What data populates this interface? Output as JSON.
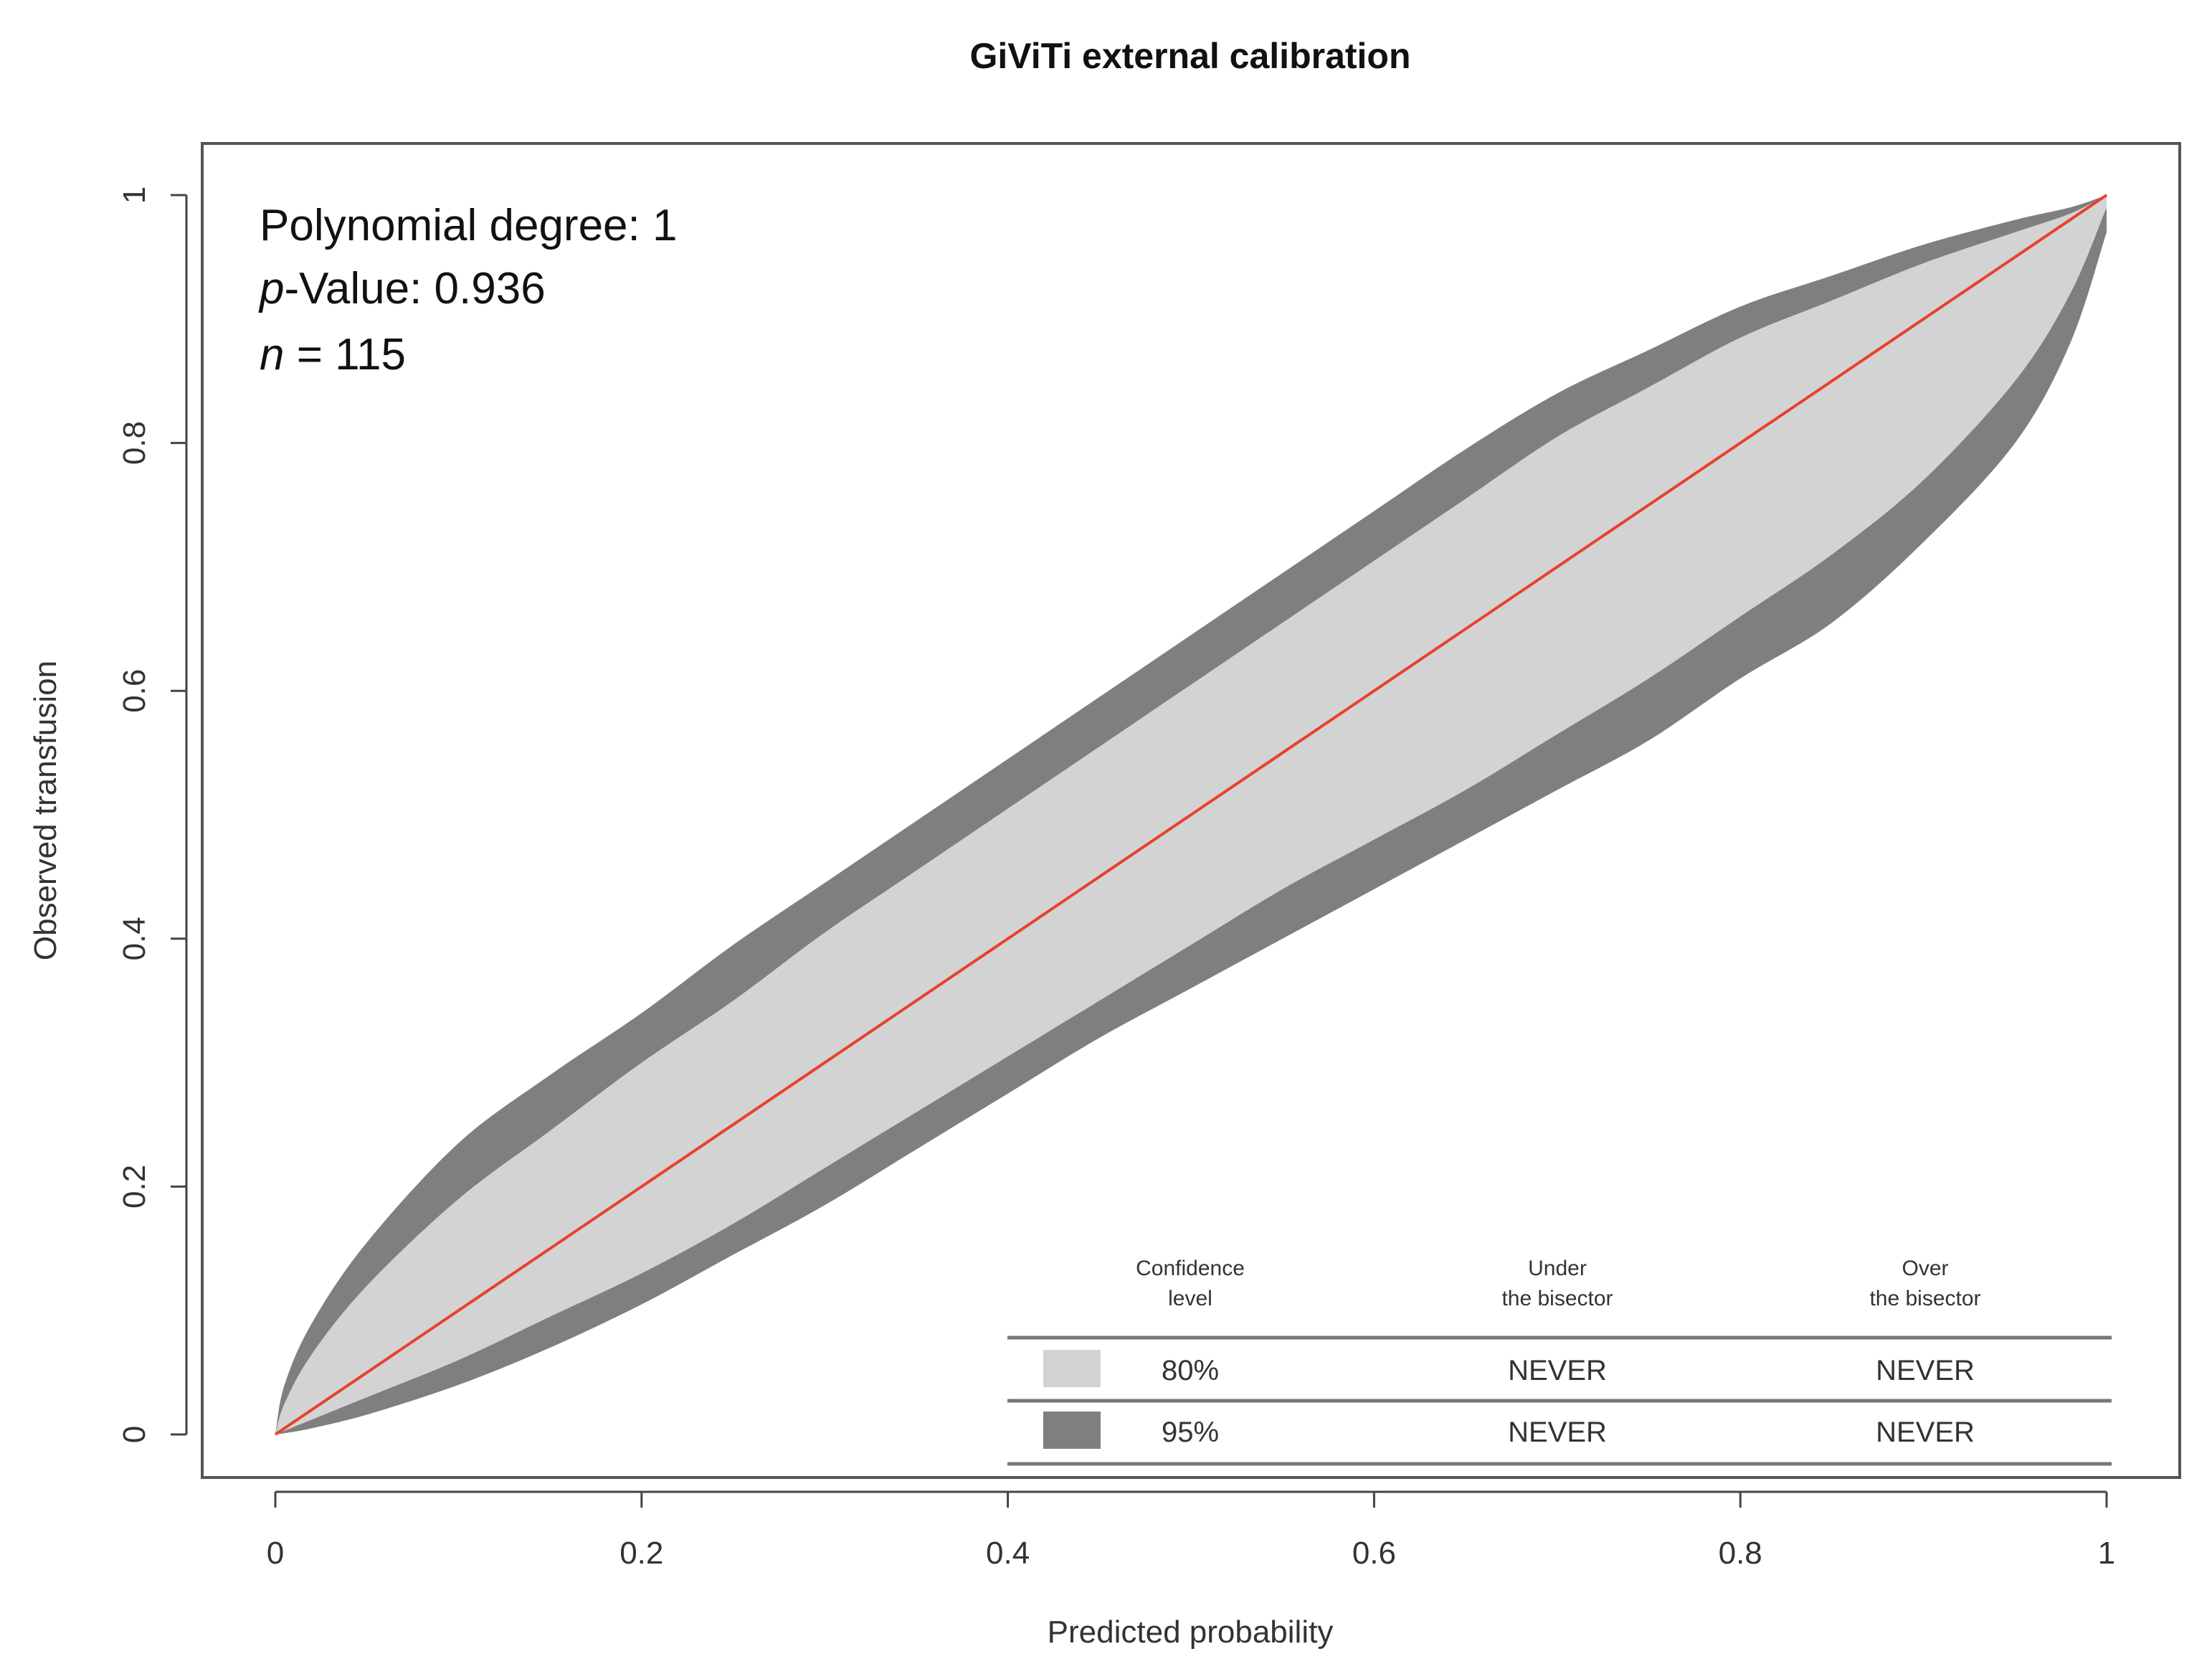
{
  "chart_data": {
    "type": "area",
    "title": "GiViTi external calibration",
    "xlabel": "Predicted probability",
    "ylabel": "Observed transfusion",
    "xlim": [
      0,
      1
    ],
    "ylim": [
      0,
      1
    ],
    "x_ticks": [
      0,
      0.2,
      0.4,
      0.6,
      0.8,
      1
    ],
    "x_tick_labels": [
      "0",
      "0.2",
      "0.4",
      "0.6",
      "0.8",
      "1"
    ],
    "y_ticks": [
      0,
      0.2,
      0.4,
      0.6,
      0.8,
      1
    ],
    "y_tick_labels": [
      "0",
      "0.2",
      "0.4",
      "0.6",
      "0.8",
      "1"
    ],
    "annotations": {
      "degree": "Polynomial degree: 1",
      "pvalue_prefix": "p",
      "pvalue_rest": "-Value: 0.936",
      "n_prefix": "n",
      "n_rest": " = 115"
    },
    "bisector": {
      "x": [
        0,
        1
      ],
      "y": [
        0,
        1
      ],
      "color": "#e8412c"
    },
    "band_x": [
      0,
      0.005,
      0.02,
      0.05,
      0.1,
      0.15,
      0.2,
      0.25,
      0.3,
      0.35,
      0.4,
      0.45,
      0.5,
      0.55,
      0.6,
      0.65,
      0.7,
      0.75,
      0.8,
      0.85,
      0.9,
      0.95,
      0.98,
      1
    ],
    "series": [
      {
        "name": "95%",
        "color": "#7f7f7f",
        "upper": [
          0,
          0.04,
          0.09,
          0.155,
          0.235,
          0.29,
          0.34,
          0.395,
          0.445,
          0.495,
          0.545,
          0.595,
          0.645,
          0.695,
          0.745,
          0.795,
          0.84,
          0.875,
          0.91,
          0.935,
          0.96,
          0.98,
          0.99,
          1
        ],
        "lower": [
          0,
          0.001,
          0.005,
          0.016,
          0.04,
          0.07,
          0.105,
          0.145,
          0.185,
          0.23,
          0.275,
          0.32,
          0.36,
          0.4,
          0.44,
          0.48,
          0.52,
          0.56,
          0.61,
          0.655,
          0.72,
          0.8,
          0.88,
          0.97
        ]
      },
      {
        "name": "80%",
        "color": "#d3d3d3",
        "upper": [
          0,
          0.025,
          0.065,
          0.12,
          0.19,
          0.245,
          0.3,
          0.35,
          0.405,
          0.455,
          0.505,
          0.555,
          0.605,
          0.655,
          0.705,
          0.755,
          0.805,
          0.845,
          0.885,
          0.915,
          0.945,
          0.97,
          0.985,
          1
        ],
        "lower": [
          0,
          0.003,
          0.012,
          0.03,
          0.06,
          0.095,
          0.13,
          0.17,
          0.215,
          0.26,
          0.305,
          0.35,
          0.395,
          0.44,
          0.48,
          0.52,
          0.565,
          0.61,
          0.66,
          0.71,
          0.77,
          0.85,
          0.92,
          0.99
        ]
      }
    ],
    "legend": {
      "headers": [
        [
          "Confidence",
          "level"
        ],
        [
          "Under",
          "the bisector"
        ],
        [
          "Over",
          "the bisector"
        ]
      ],
      "rows": [
        {
          "level": "80%",
          "under": "NEVER",
          "over": "NEVER",
          "color": "#d3d3d3"
        },
        {
          "level": "95%",
          "under": "NEVER",
          "over": "NEVER",
          "color": "#7f7f7f"
        }
      ]
    }
  }
}
